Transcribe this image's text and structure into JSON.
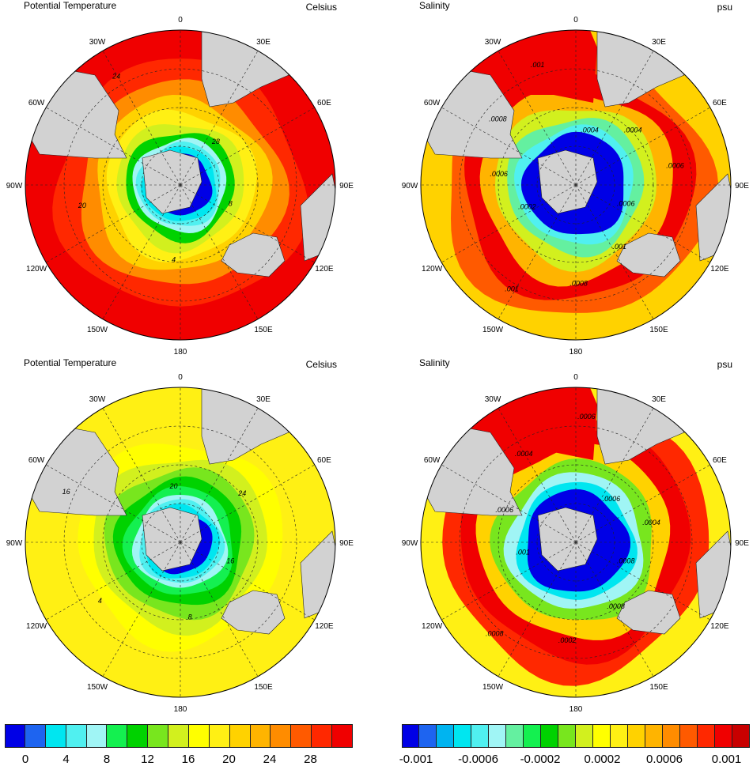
{
  "panels": [
    {
      "title": "Potential Temperature",
      "unit": "Celsius",
      "variant": "temp",
      "contour_labels": [
        "8",
        "4",
        "20",
        "24",
        "28"
      ]
    },
    {
      "title": "Salinity",
      "unit": "psu",
      "variant": "sal",
      "contour_labels": [
        ".0006",
        ".001",
        ".0008",
        ".001",
        ".0002",
        ".0006",
        ".0008",
        ".001",
        ".0004",
        ".0004",
        ".0006"
      ]
    },
    {
      "title": "Potential Temperature",
      "unit": "Celsius",
      "variant": "temp",
      "contour_labels": [
        "16",
        "8",
        "4",
        "16",
        "20",
        "24"
      ]
    },
    {
      "title": "Salinity",
      "unit": "psu",
      "variant": "sal",
      "contour_labels": [
        ".0008",
        ".0008",
        ".0002",
        ".0008",
        ".001",
        ".0006",
        ".0004",
        ".0006",
        ".0006",
        ".0004"
      ]
    }
  ],
  "longitude_labels": [
    "0",
    "30E",
    "60E",
    "90E",
    "120E",
    "150E",
    "180",
    "150W",
    "120W",
    "90W",
    "60W",
    "30W"
  ],
  "colorbars": [
    {
      "name": "temperature",
      "ticks": [
        "0",
        "4",
        "8",
        "12",
        "16",
        "20",
        "24",
        "28"
      ],
      "colors": [
        "#0000e6",
        "#1e64f0",
        "#00e6f0",
        "#50f0f0",
        "#a0f5f5",
        "#14f050",
        "#00d200",
        "#78e61e",
        "#d2f01e",
        "#ffff00",
        "#fff014",
        "#ffd200",
        "#ffb400",
        "#ff8c00",
        "#ff5a00",
        "#ff2800",
        "#f00000"
      ]
    },
    {
      "name": "salinity",
      "ticks": [
        "-0.001",
        "-0.0006",
        "-0.0002",
        "0.0002",
        "0.0006",
        "0.001"
      ],
      "colors": [
        "#0000e6",
        "#1e64f0",
        "#00b4f0",
        "#00e6f0",
        "#50f0f0",
        "#a0f5f5",
        "#64f0a0",
        "#14f050",
        "#00d200",
        "#78e61e",
        "#d2f01e",
        "#ffff00",
        "#fff014",
        "#ffd200",
        "#ffb400",
        "#ff8c00",
        "#ff5a00",
        "#ff2800",
        "#f00000",
        "#c80000"
      ]
    }
  ]
}
